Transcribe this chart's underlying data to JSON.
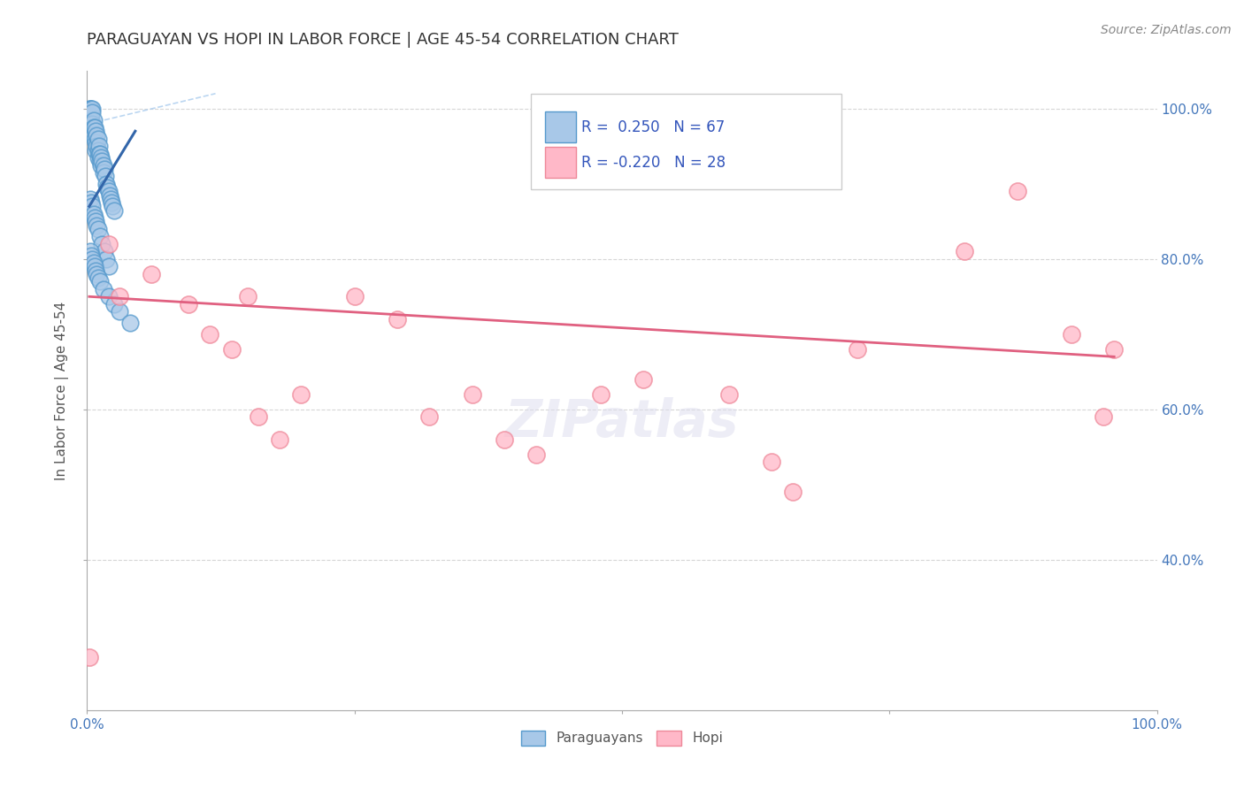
{
  "title": "PARAGUAYAN VS HOPI IN LABOR FORCE | AGE 45-54 CORRELATION CHART",
  "source_text": "Source: ZipAtlas.com",
  "ylabel": "In Labor Force | Age 45-54",
  "xlim": [
    0.0,
    1.0
  ],
  "ylim": [
    0.2,
    1.05
  ],
  "xticks": [
    0.0,
    0.25,
    0.5,
    0.75,
    1.0
  ],
  "xticklabels": [
    "0.0%",
    "",
    "",
    "",
    "100.0%"
  ],
  "yticks": [
    0.4,
    0.6,
    0.8,
    1.0
  ],
  "yticklabels": [
    "40.0%",
    "60.0%",
    "80.0%",
    "100.0%"
  ],
  "paraguayan_R": 0.25,
  "paraguayan_N": 67,
  "hopi_R": -0.22,
  "hopi_N": 28,
  "paraguayan_color": "#a8c8e8",
  "paraguayan_edge": "#5599cc",
  "hopi_color": "#ffb8c8",
  "hopi_edge": "#ee8899",
  "blue_line_color": "#3366aa",
  "pink_line_color": "#e06080",
  "dashed_line_color": "#aaccee",
  "background_color": "#ffffff",
  "grid_color": "#cccccc",
  "title_color": "#333333",
  "source_color": "#888888",
  "tick_label_color": "#4477bb",
  "paraguayan_x": [
    0.002,
    0.003,
    0.003,
    0.004,
    0.004,
    0.005,
    0.005,
    0.005,
    0.006,
    0.006,
    0.006,
    0.007,
    0.007,
    0.008,
    0.008,
    0.008,
    0.009,
    0.009,
    0.01,
    0.01,
    0.01,
    0.011,
    0.011,
    0.012,
    0.012,
    0.013,
    0.013,
    0.014,
    0.015,
    0.015,
    0.016,
    0.017,
    0.018,
    0.019,
    0.02,
    0.021,
    0.022,
    0.023,
    0.024,
    0.025,
    0.003,
    0.004,
    0.005,
    0.006,
    0.007,
    0.008,
    0.009,
    0.01,
    0.012,
    0.014,
    0.016,
    0.018,
    0.02,
    0.003,
    0.004,
    0.005,
    0.006,
    0.007,
    0.008,
    0.009,
    0.01,
    0.012,
    0.015,
    0.02,
    0.025,
    0.03,
    0.04
  ],
  "paraguayan_y": [
    1.0,
    1.0,
    0.99,
    1.0,
    0.985,
    1.0,
    0.995,
    0.98,
    0.985,
    0.975,
    0.965,
    0.975,
    0.96,
    0.97,
    0.955,
    0.945,
    0.965,
    0.95,
    0.96,
    0.945,
    0.935,
    0.95,
    0.94,
    0.94,
    0.93,
    0.935,
    0.925,
    0.93,
    0.925,
    0.915,
    0.92,
    0.91,
    0.9,
    0.895,
    0.89,
    0.885,
    0.88,
    0.875,
    0.87,
    0.865,
    0.88,
    0.875,
    0.87,
    0.86,
    0.855,
    0.85,
    0.845,
    0.84,
    0.83,
    0.82,
    0.81,
    0.8,
    0.79,
    0.81,
    0.805,
    0.8,
    0.795,
    0.79,
    0.785,
    0.78,
    0.775,
    0.77,
    0.76,
    0.75,
    0.74,
    0.73,
    0.715
  ],
  "hopi_x": [
    0.02,
    0.03,
    0.06,
    0.095,
    0.115,
    0.15,
    0.16,
    0.18,
    0.2,
    0.25,
    0.29,
    0.32,
    0.36,
    0.39,
    0.42,
    0.48,
    0.52,
    0.6,
    0.64,
    0.66,
    0.72,
    0.82,
    0.87,
    0.92,
    0.95,
    0.96,
    0.002,
    0.135
  ],
  "hopi_y": [
    0.82,
    0.75,
    0.78,
    0.74,
    0.7,
    0.75,
    0.59,
    0.56,
    0.62,
    0.75,
    0.72,
    0.59,
    0.62,
    0.56,
    0.54,
    0.62,
    0.64,
    0.62,
    0.53,
    0.49,
    0.68,
    0.81,
    0.89,
    0.7,
    0.59,
    0.68,
    0.27,
    0.68
  ],
  "blue_line_x": [
    0.002,
    0.045
  ],
  "blue_line_y": [
    0.87,
    0.97
  ],
  "pink_line_x": [
    0.002,
    0.96
  ],
  "pink_line_y": [
    0.75,
    0.67
  ]
}
